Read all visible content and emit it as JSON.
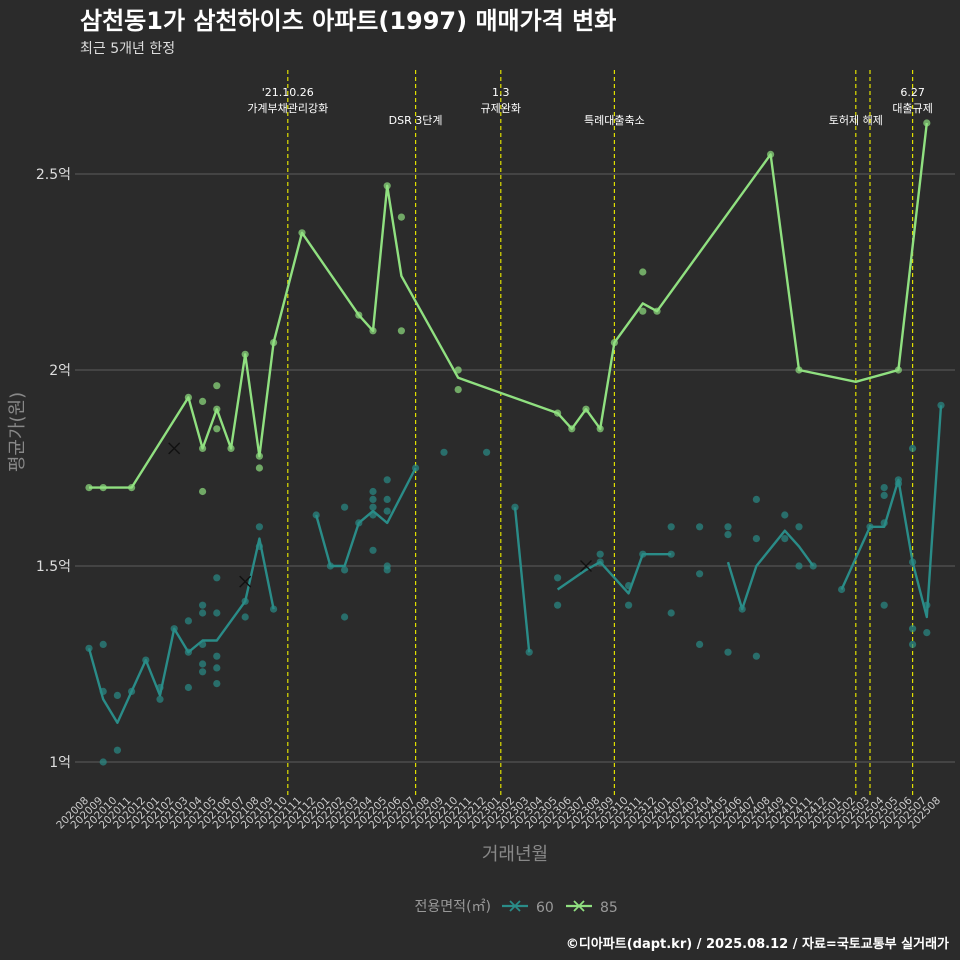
{
  "chart_data": {
    "type": "line",
    "title": "삼천동1가 삼천하이츠 아파트(1997) 매매가격 변화",
    "subtitle": "최근 5개년 한정",
    "xlabel": "거래년월",
    "ylabel": "평균가(원)",
    "ylim": [
      0.93,
      2.93
    ],
    "yticks": [
      {
        "value": 1.0,
        "label": "1억"
      },
      {
        "value": 1.5,
        "label": "1.5억"
      },
      {
        "value": 2.0,
        "label": "2억"
      },
      {
        "value": 2.5,
        "label": "2.5억"
      }
    ],
    "categories": [
      "202008",
      "202009",
      "202010",
      "202011",
      "202012",
      "202101",
      "202102",
      "202103",
      "202104",
      "202105",
      "202106",
      "202107",
      "202108",
      "202109",
      "202110",
      "202111",
      "202112",
      "202201",
      "202202",
      "202203",
      "202204",
      "202205",
      "202206",
      "202207",
      "202208",
      "202209",
      "202210",
      "202211",
      "202212",
      "202301",
      "202302",
      "202303",
      "202304",
      "202305",
      "202306",
      "202307",
      "202308",
      "202309",
      "202310",
      "202311",
      "202312",
      "202401",
      "202402",
      "202403",
      "202404",
      "202405",
      "202406",
      "202407",
      "202408",
      "202409",
      "202410",
      "202411",
      "202412",
      "202501",
      "202502",
      "202503",
      "202504",
      "202505",
      "202506",
      "202507",
      "202508"
    ],
    "events": [
      {
        "x": 14.0,
        "label": [
          "'21.10.26",
          "가계부채관리강화"
        ]
      },
      {
        "x": 23.0,
        "label": [
          "DSR 3단계"
        ]
      },
      {
        "x": 29.0,
        "label": [
          "1.3",
          "규제완화"
        ]
      },
      {
        "x": 37.0,
        "label": [
          "특례대출축소"
        ]
      },
      {
        "x": 54.0,
        "label": [
          "토허제 해제"
        ]
      },
      {
        "x": 55.0,
        "label": []
      },
      {
        "x": 58.0,
        "label": [
          "6.27",
          "대출규제"
        ]
      }
    ],
    "legend": {
      "title": "전용면적(㎡)",
      "position": "bottom"
    },
    "series": [
      {
        "name": "60",
        "color": "#2a8c88",
        "line_segments": [
          [
            [
              0,
              1.29
            ],
            [
              1,
              1.16
            ],
            [
              2,
              1.1
            ],
            [
              3,
              1.18
            ],
            [
              4,
              1.26
            ],
            [
              5,
              1.17
            ],
            [
              6,
              1.34
            ],
            [
              7,
              1.28
            ],
            [
              8,
              1.31
            ],
            [
              9,
              1.31
            ],
            [
              11,
              1.41
            ],
            [
              12,
              1.57
            ],
            [
              13,
              1.39
            ]
          ],
          [
            [
              16,
              1.63
            ],
            [
              17,
              1.5
            ],
            [
              18,
              1.5
            ],
            [
              19,
              1.61
            ],
            [
              20,
              1.64
            ],
            [
              21,
              1.61
            ],
            [
              23,
              1.75
            ]
          ],
          [
            [
              30,
              1.65
            ],
            [
              31,
              1.28
            ]
          ],
          [
            [
              33,
              1.44
            ],
            [
              35,
              1.49
            ],
            [
              36,
              1.51
            ],
            [
              37,
              1.47
            ],
            [
              38,
              1.43
            ],
            [
              39,
              1.53
            ],
            [
              41,
              1.53
            ]
          ],
          [
            [
              45,
              1.51
            ],
            [
              46,
              1.39
            ],
            [
              47,
              1.5
            ],
            [
              49,
              1.59
            ],
            [
              50,
              1.55
            ],
            [
              51,
              1.5
            ]
          ],
          [
            [
              53,
              1.44
            ],
            [
              55,
              1.6
            ],
            [
              56,
              1.6
            ],
            [
              57,
              1.72
            ],
            [
              58,
              1.51
            ],
            [
              59,
              1.37
            ],
            [
              60,
              1.91
            ]
          ]
        ],
        "points": [
          [
            0,
            1.29
          ],
          [
            1,
            1.18
          ],
          [
            1,
            1.3
          ],
          [
            1,
            1.0
          ],
          [
            2,
            1.17
          ],
          [
            2,
            1.03
          ],
          [
            3,
            1.18
          ],
          [
            4,
            1.26
          ],
          [
            5,
            1.19
          ],
          [
            5,
            1.16
          ],
          [
            6,
            1.34
          ],
          [
            7,
            1.36
          ],
          [
            7,
            1.19
          ],
          [
            7,
            1.28
          ],
          [
            8,
            1.25
          ],
          [
            8,
            1.23
          ],
          [
            8,
            1.3
          ],
          [
            8,
            1.38
          ],
          [
            8,
            1.4
          ],
          [
            9,
            1.47
          ],
          [
            9,
            1.38
          ],
          [
            9,
            1.27
          ],
          [
            9,
            1.24
          ],
          [
            9,
            1.2
          ],
          [
            11,
            1.41
          ],
          [
            11,
            1.37
          ],
          [
            12,
            1.6
          ],
          [
            12,
            1.55
          ],
          [
            13,
            1.39
          ],
          [
            16,
            1.63
          ],
          [
            17,
            1.5
          ],
          [
            18,
            1.65
          ],
          [
            18,
            1.37
          ],
          [
            18,
            1.49
          ],
          [
            19,
            1.61
          ],
          [
            20,
            1.67
          ],
          [
            20,
            1.69
          ],
          [
            20,
            1.65
          ],
          [
            20,
            1.63
          ],
          [
            20,
            1.54
          ],
          [
            21,
            1.72
          ],
          [
            21,
            1.67
          ],
          [
            21,
            1.64
          ],
          [
            21,
            1.5
          ],
          [
            21,
            1.49
          ],
          [
            23,
            1.75
          ],
          [
            25,
            1.79
          ],
          [
            28,
            1.79
          ],
          [
            30,
            1.65
          ],
          [
            31,
            1.28
          ],
          [
            33,
            1.47
          ],
          [
            33,
            1.4
          ],
          [
            36,
            1.53
          ],
          [
            36,
            1.51
          ],
          [
            38,
            1.45
          ],
          [
            38,
            1.4
          ],
          [
            39,
            1.53
          ],
          [
            41,
            1.6
          ],
          [
            41,
            1.53
          ],
          [
            41,
            1.38
          ],
          [
            43,
            1.6
          ],
          [
            43,
            1.48
          ],
          [
            43,
            1.3
          ],
          [
            45,
            1.6
          ],
          [
            45,
            1.58
          ],
          [
            45,
            1.28
          ],
          [
            46,
            1.39
          ],
          [
            47,
            1.67
          ],
          [
            47,
            1.57
          ],
          [
            47,
            1.27
          ],
          [
            49,
            1.63
          ],
          [
            49,
            1.57
          ],
          [
            50,
            1.6
          ],
          [
            50,
            1.5
          ],
          [
            51,
            1.5
          ],
          [
            53,
            1.44
          ],
          [
            55,
            1.6
          ],
          [
            56,
            1.7
          ],
          [
            56,
            1.68
          ],
          [
            56,
            1.61
          ],
          [
            56,
            1.4
          ],
          [
            57,
            1.72
          ],
          [
            57,
            1.71
          ],
          [
            58,
            1.8
          ],
          [
            58,
            1.51
          ],
          [
            58,
            1.34
          ],
          [
            58,
            1.3
          ],
          [
            59,
            1.4
          ],
          [
            59,
            1.33
          ],
          [
            60,
            1.91
          ]
        ],
        "x_marks": [
          [
            11,
            1.46
          ],
          [
            35,
            1.5
          ]
        ]
      },
      {
        "name": "85",
        "color": "#90e080",
        "line_segments": [
          [
            [
              0,
              1.7
            ],
            [
              1,
              1.7
            ],
            [
              3,
              1.7
            ],
            [
              7,
              1.93
            ],
            [
              8,
              1.8
            ],
            [
              9,
              1.9
            ],
            [
              10,
              1.8
            ],
            [
              11,
              2.04
            ],
            [
              12,
              1.78
            ],
            [
              13,
              2.07
            ],
            [
              15,
              2.35
            ],
            [
              19,
              2.14
            ],
            [
              20,
              2.1
            ],
            [
              21,
              2.47
            ],
            [
              22,
              2.24
            ],
            [
              26,
              1.98
            ],
            [
              33,
              1.89
            ],
            [
              34,
              1.85
            ],
            [
              35,
              1.9
            ],
            [
              36,
              1.85
            ],
            [
              37,
              2.07
            ],
            [
              39,
              2.17
            ],
            [
              40,
              2.15
            ],
            [
              48,
              2.55
            ],
            [
              50,
              2.0
            ],
            [
              54,
              1.97
            ],
            [
              57,
              2.0
            ],
            [
              59,
              2.63
            ]
          ]
        ],
        "points": [
          [
            0,
            1.7
          ],
          [
            1,
            1.7
          ],
          [
            3,
            1.7
          ],
          [
            7,
            1.93
          ],
          [
            8,
            1.92
          ],
          [
            8,
            1.8
          ],
          [
            8,
            1.69
          ],
          [
            9,
            1.96
          ],
          [
            9,
            1.9
          ],
          [
            9,
            1.85
          ],
          [
            10,
            1.8
          ],
          [
            11,
            2.04
          ],
          [
            12,
            1.75
          ],
          [
            12,
            1.78
          ],
          [
            13,
            2.07
          ],
          [
            15,
            2.35
          ],
          [
            19,
            2.14
          ],
          [
            20,
            2.1
          ],
          [
            21,
            2.47
          ],
          [
            22,
            2.39
          ],
          [
            22,
            2.1
          ],
          [
            26,
            2.0
          ],
          [
            26,
            1.95
          ],
          [
            33,
            1.89
          ],
          [
            34,
            1.85
          ],
          [
            35,
            1.9
          ],
          [
            36,
            1.85
          ],
          [
            37,
            2.07
          ],
          [
            39,
            2.25
          ],
          [
            39,
            2.15
          ],
          [
            40,
            2.15
          ],
          [
            48,
            2.55
          ],
          [
            50,
            2.0
          ],
          [
            57,
            2.0
          ],
          [
            59,
            2.63
          ]
        ],
        "x_marks": [
          [
            6,
            1.8
          ]
        ]
      }
    ]
  },
  "caption": "©디아파트(dapt.kr) / 2025.08.12 / 자료=국토교통부 실거래가"
}
